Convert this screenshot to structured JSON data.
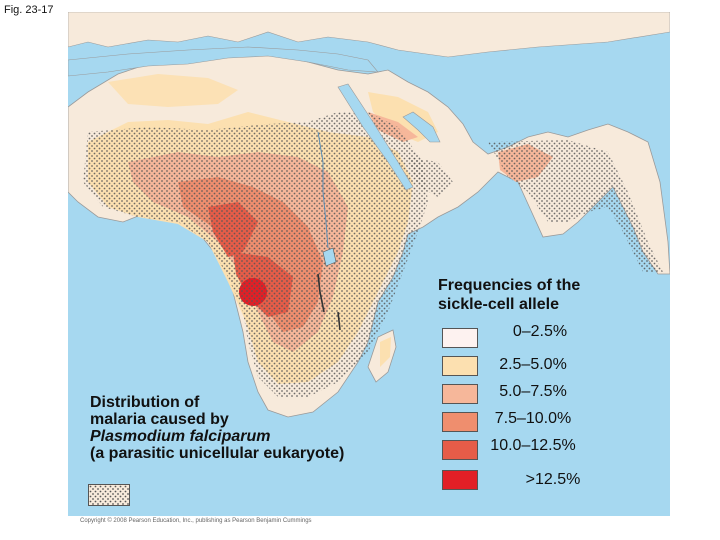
{
  "figure_label": "Fig. 23-17",
  "colors": {
    "ocean": "#a6d8f0",
    "land": "#f7eadb",
    "freq_0_25": "#fdf2f0",
    "freq_25_50": "#fce0b0",
    "freq_50_75": "#f6b79a",
    "freq_75_100": "#ef8e6e",
    "freq_100_125": "#e65c48",
    "freq_over_125": "#e21f26",
    "malaria_dots": "#555555"
  },
  "legend": {
    "title_line1": "Frequencies of the",
    "title_line2": "sickle-cell allele",
    "items": [
      {
        "label": "0–2.5%",
        "color": "#fdf2f0"
      },
      {
        "label": "2.5–5.0%",
        "color": "#fce0b0"
      },
      {
        "label": "5.0–7.5%",
        "color": "#f6b79a"
      },
      {
        "label": "7.5–10.0%",
        "color": "#ef8e6e"
      },
      {
        "label": "10.0–12.5%",
        "color": "#e65c48"
      },
      {
        "label": ">12.5%",
        "color": "#e21f26"
      }
    ]
  },
  "malaria_caption": {
    "line1": "Distribution of",
    "line2": "malaria caused by",
    "line3": "Plasmodium falciparum",
    "line4": "(a parasitic unicellular eukaryote)"
  },
  "copyright": "Copyright © 2008 Pearson Education, Inc., publishing as Pearson Benjamin Cummings"
}
